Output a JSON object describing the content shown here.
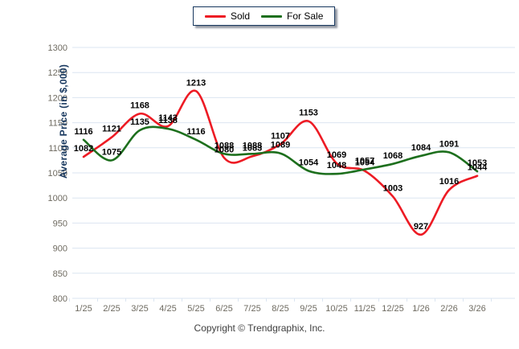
{
  "legend": {
    "position": "top-center",
    "border_color": "#17375e"
  },
  "footer": {
    "copyright": "Copyright © Trendgraphix, Inc."
  },
  "colors": {
    "grid": "#dbe5f1",
    "tick_text": "#6e6a60",
    "axis_title": "#17375e",
    "data_label": "#000000",
    "background": "#ffffff"
  },
  "chart_data": {
    "type": "line",
    "title": "",
    "xlabel": "",
    "ylabel": "Average Price (in $,000)",
    "ylim": [
      800,
      1300
    ],
    "ytick_step": 50,
    "grid": true,
    "smooth": true,
    "data_labels": true,
    "legend_position": "top-center",
    "categories": [
      "1/25",
      "2/25",
      "3/25",
      "4/25",
      "5/25",
      "6/25",
      "7/25",
      "8/25",
      "9/25",
      "10/25",
      "11/25",
      "12/25",
      "1/26",
      "2/26",
      "3/26"
    ],
    "series": [
      {
        "name": "Sold",
        "color": "#ed1b24",
        "values": [
          1082,
          1121,
          1168,
          1143,
          1213,
          1080,
          1083,
          1107,
          1153,
          1069,
          1054,
          1003,
          927,
          1016,
          1044
        ]
      },
      {
        "name": "For Sale",
        "color": "#1d6f1d",
        "values": [
          1116,
          1075,
          1135,
          1138,
          1116,
          1088,
          1088,
          1089,
          1054,
          1048,
          1057,
          1068,
          1084,
          1091,
          1053
        ]
      }
    ]
  }
}
